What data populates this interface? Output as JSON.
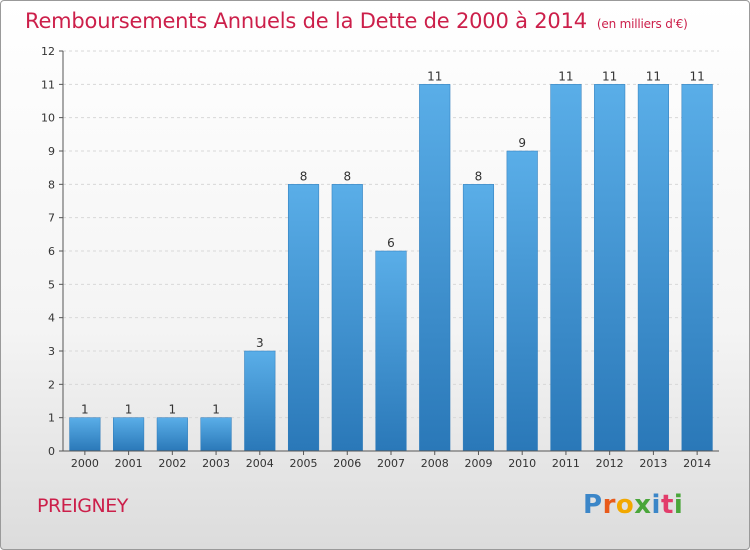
{
  "header": {
    "title": "Remboursements Annuels de la Dette de 2000 à 2014",
    "subtitle": "(en milliers d'€)"
  },
  "footer": {
    "commune": "PREIGNEY",
    "brand": "Proxiti",
    "brand_colors": [
      "#3b86c8",
      "#e85a1b",
      "#f2a800",
      "#4aa63a",
      "#3b86c8",
      "#e23d6b",
      "#4aa63a"
    ]
  },
  "colors": {
    "bar_light": "#5aaee8",
    "bar_dark": "#2a78b8",
    "title": "#cc1f4a",
    "grid": "#d8d8d8"
  },
  "chart_data": {
    "type": "bar",
    "title": "Remboursements Annuels de la Dette de 2000 à 2014",
    "subtitle": "(en milliers d'€)",
    "xlabel": "",
    "ylabel": "",
    "categories": [
      "2000",
      "2001",
      "2002",
      "2003",
      "2004",
      "2005",
      "2006",
      "2007",
      "2008",
      "2009",
      "2010",
      "2011",
      "2012",
      "2013",
      "2014"
    ],
    "values": [
      1,
      1,
      1,
      1,
      3,
      8,
      8,
      6,
      11,
      8,
      9,
      11,
      11,
      11,
      11
    ],
    "ylim": [
      0,
      12
    ],
    "yticks": [
      0,
      1,
      2,
      3,
      4,
      5,
      6,
      7,
      8,
      9,
      10,
      11,
      12
    ],
    "grid": true,
    "data_labels": true
  }
}
